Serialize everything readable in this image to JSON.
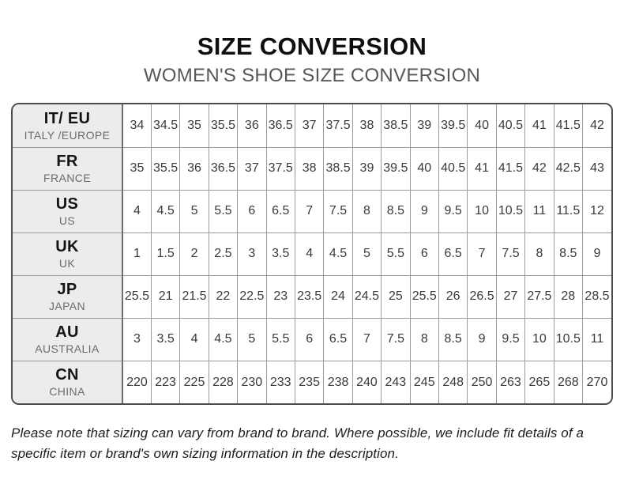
{
  "page": {
    "title": "SIZE CONVERSION",
    "subtitle": "WOMEN'S SHOE SIZE CONVERSION",
    "footnote": "Please note that sizing can vary from brand to brand. Where possible, we include fit details of a specific item or brand's own sizing information in the description."
  },
  "colors": {
    "background": "#ffffff",
    "title_text": "#0f0f0f",
    "subtitle_text": "#575757",
    "table_outer_border": "#4d4d4d",
    "table_inner_border": "#9a9a9a",
    "header_column_bg": "#ececec",
    "cell_text": "#3a3a3a",
    "region_text": "#6b6b6b"
  },
  "chart_data": {
    "type": "table",
    "title": "SIZE CONVERSION",
    "subtitle": "WOMEN'S SHOE SIZE CONVERSION",
    "columns_per_row": 17,
    "rows": [
      {
        "code": "IT/ EU",
        "region": "ITALY /EUROPE",
        "sizes": [
          "34",
          "34.5",
          "35",
          "35.5",
          "36",
          "36.5",
          "37",
          "37.5",
          "38",
          "38.5",
          "39",
          "39.5",
          "40",
          "40.5",
          "41",
          "41.5",
          "42"
        ]
      },
      {
        "code": "FR",
        "region": "FRANCE",
        "sizes": [
          "35",
          "35.5",
          "36",
          "36.5",
          "37",
          "37.5",
          "38",
          "38.5",
          "39",
          "39.5",
          "40",
          "40.5",
          "41",
          "41.5",
          "42",
          "42.5",
          "43"
        ]
      },
      {
        "code": "US",
        "region": "US",
        "sizes": [
          "4",
          "4.5",
          "5",
          "5.5",
          "6",
          "6.5",
          "7",
          "7.5",
          "8",
          "8.5",
          "9",
          "9.5",
          "10",
          "10.5",
          "11",
          "11.5",
          "12"
        ]
      },
      {
        "code": "UK",
        "region": "UK",
        "sizes": [
          "1",
          "1.5",
          "2",
          "2.5",
          "3",
          "3.5",
          "4",
          "4.5",
          "5",
          "5.5",
          "6",
          "6.5",
          "7",
          "7.5",
          "8",
          "8.5",
          "9"
        ]
      },
      {
        "code": "JP",
        "region": "JAPAN",
        "sizes": [
          "25.5",
          "21",
          "21.5",
          "22",
          "22.5",
          "23",
          "23.5",
          "24",
          "24.5",
          "25",
          "25.5",
          "26",
          "26.5",
          "27",
          "27.5",
          "28",
          "28.5"
        ]
      },
      {
        "code": "AU",
        "region": "AUSTRALIA",
        "sizes": [
          "3",
          "3.5",
          "4",
          "4.5",
          "5",
          "5.5",
          "6",
          "6.5",
          "7",
          "7.5",
          "8",
          "8.5",
          "9",
          "9.5",
          "10",
          "10.5",
          "11"
        ]
      },
      {
        "code": "CN",
        "region": "CHINA",
        "sizes": [
          "220",
          "223",
          "225",
          "228",
          "230",
          "233",
          "235",
          "238",
          "240",
          "243",
          "245",
          "248",
          "250",
          "263",
          "265",
          "268",
          "270"
        ]
      }
    ]
  }
}
